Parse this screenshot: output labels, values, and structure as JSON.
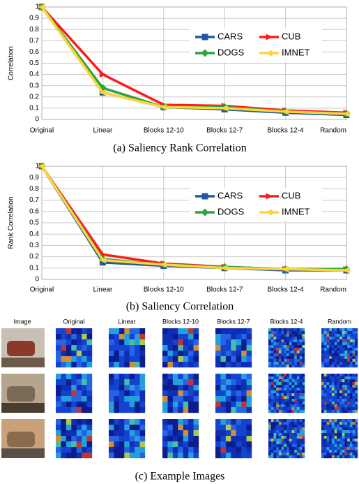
{
  "chart_data": [
    {
      "type": "line",
      "caption": "(a) Saliency Rank Correlation",
      "y_label": "Correlation",
      "categories": [
        "Original",
        "Linear",
        "Blocks 12-10",
        "Blocks 12-7",
        "Blocks 12-4",
        "Random"
      ],
      "ylim": [
        0,
        1
      ],
      "yticks": [
        0,
        0.1,
        0.2,
        0.3,
        0.4,
        0.5,
        0.6,
        0.7,
        0.8,
        0.9,
        1
      ],
      "grid": true,
      "series": [
        {
          "name": "CARS",
          "color": "#1f5aa0",
          "marker": "square",
          "values": [
            1,
            0.24,
            0.11,
            0.09,
            0.06,
            0.04
          ]
        },
        {
          "name": "CUB",
          "color": "#ff1a1a",
          "marker": "arrow",
          "values": [
            1,
            0.4,
            0.13,
            0.12,
            0.08,
            0.06
          ]
        },
        {
          "name": "DOGS",
          "color": "#2ca33c",
          "marker": "diamond",
          "values": [
            1,
            0.28,
            0.11,
            0.11,
            0.07,
            0.05
          ]
        },
        {
          "name": "IMNET",
          "color": "#ffd43a",
          "marker": "triangle",
          "values": [
            1,
            0.24,
            0.11,
            0.1,
            0.07,
            0.05
          ]
        }
      ]
    },
    {
      "type": "line",
      "caption": "(b) Saliency Correlation",
      "y_label": "Rank Correlation",
      "categories": [
        "Original",
        "Linear",
        "Blocks 12-10",
        "Blocks 12-7",
        "Blocks 12-4",
        "Random"
      ],
      "ylim": [
        0,
        1
      ],
      "yticks": [
        0,
        0.1,
        0.2,
        0.3,
        0.4,
        0.5,
        0.6,
        0.7,
        0.8,
        0.9,
        1
      ],
      "grid": true,
      "series": [
        {
          "name": "CARS",
          "color": "#1f5aa0",
          "marker": "square",
          "values": [
            1,
            0.15,
            0.12,
            0.1,
            0.08,
            0.08
          ]
        },
        {
          "name": "CUB",
          "color": "#ff1a1a",
          "marker": "arrow",
          "values": [
            1,
            0.22,
            0.14,
            0.11,
            0.09,
            0.09
          ]
        },
        {
          "name": "DOGS",
          "color": "#2ca33c",
          "marker": "diamond",
          "values": [
            1,
            0.18,
            0.13,
            0.11,
            0.09,
            0.09
          ]
        },
        {
          "name": "IMNET",
          "color": "#ffd43a",
          "marker": "triangle",
          "values": [
            1,
            0.17,
            0.13,
            0.1,
            0.09,
            0.08
          ]
        }
      ]
    }
  ],
  "image_grid": {
    "columns": [
      "Image",
      "Original",
      "Linear",
      "Blocks 12-10",
      "Blocks 12-7",
      "Blocks 12-4",
      "Random"
    ],
    "caption": "(c) Example Images"
  }
}
